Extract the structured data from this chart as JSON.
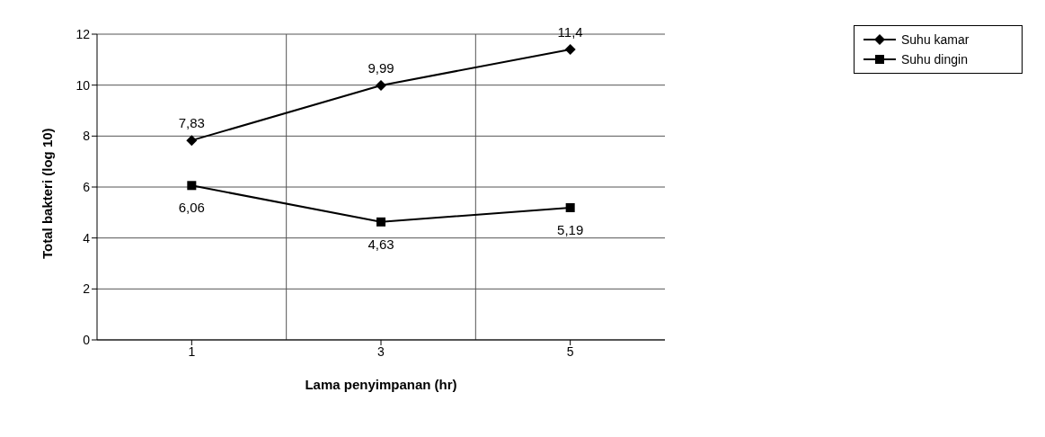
{
  "chart_data": {
    "type": "line",
    "xlabel": "Lama penyimpanan (hr)",
    "ylabel": "Total bakteri (log 10)",
    "categories": [
      "1",
      "3",
      "5"
    ],
    "series": [
      {
        "name": "Suhu kamar",
        "color": "#000000",
        "marker": "diamond",
        "values": [
          7.83,
          9.99,
          11.4
        ],
        "value_labels": [
          "7,83",
          "9,99",
          "11,4"
        ]
      },
      {
        "name": "Suhu dingin",
        "color": "#000000",
        "marker": "square",
        "values": [
          6.06,
          4.63,
          5.19
        ],
        "value_labels": [
          "6,06",
          "4,63",
          "5,19"
        ]
      }
    ],
    "ylim": [
      0,
      12
    ],
    "yticks": [
      0,
      2,
      4,
      6,
      8,
      10,
      12
    ],
    "grid": true,
    "legend": "top right"
  }
}
